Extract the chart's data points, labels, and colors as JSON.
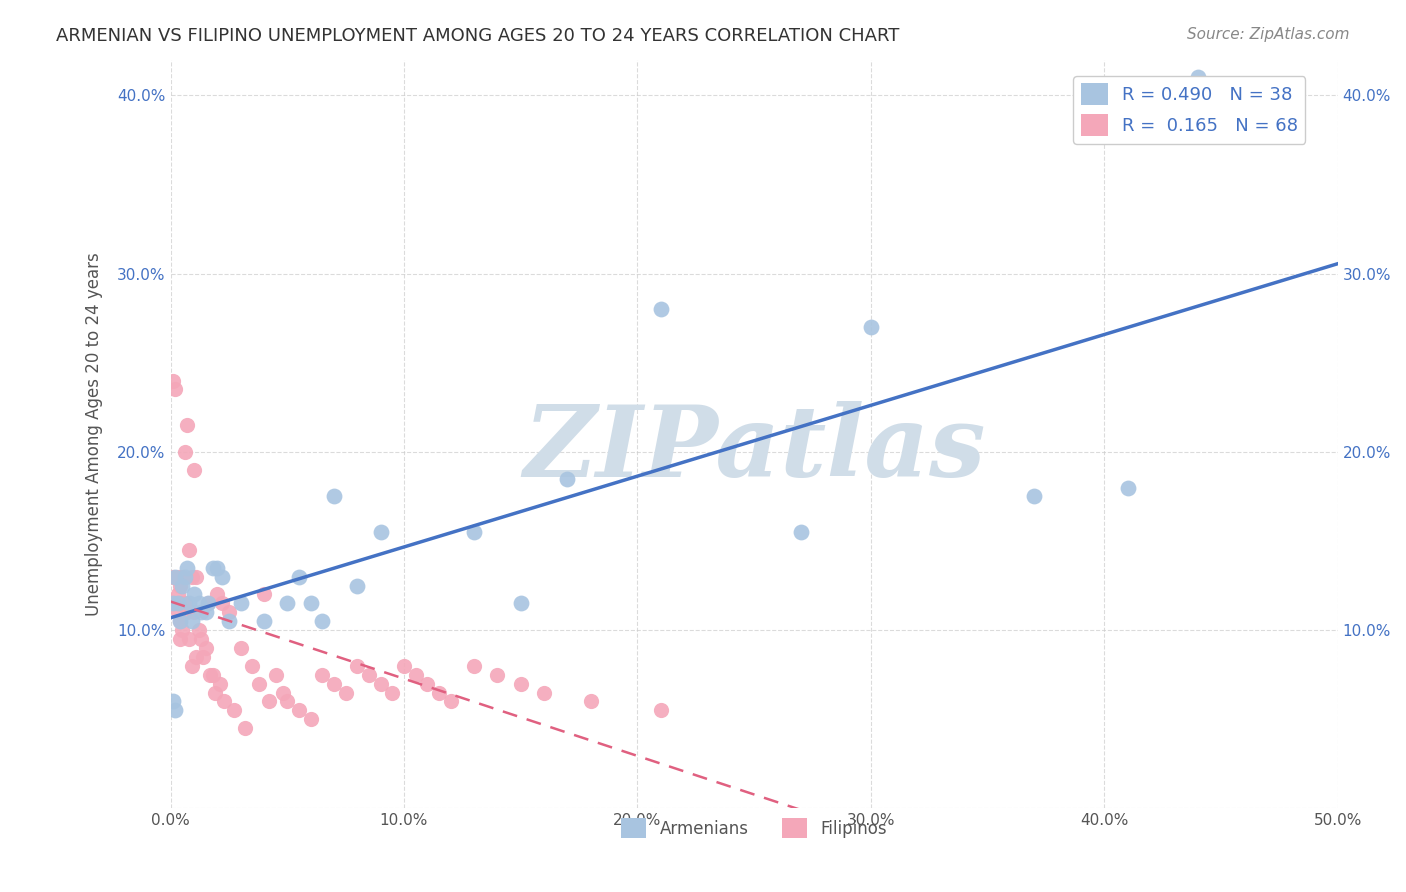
{
  "title": "ARMENIAN VS FILIPINO UNEMPLOYMENT AMONG AGES 20 TO 24 YEARS CORRELATION CHART",
  "source": "Source: ZipAtlas.com",
  "ylabel": "Unemployment Among Ages 20 to 24 years",
  "xlim": [
    0.0,
    0.5
  ],
  "ylim": [
    0.0,
    0.42
  ],
  "xticks": [
    0.0,
    0.1,
    0.2,
    0.3,
    0.4,
    0.5
  ],
  "yticks": [
    0.0,
    0.1,
    0.2,
    0.3,
    0.4
  ],
  "xtick_labels": [
    "0.0%",
    "10.0%",
    "20.0%",
    "30.0%",
    "40.0%",
    "50.0%"
  ],
  "ytick_labels": [
    "",
    "10.0%",
    "20.0%",
    "30.0%",
    "40.0%"
  ],
  "armenian_R": 0.49,
  "armenian_N": 38,
  "filipino_R": 0.165,
  "filipino_N": 68,
  "armenian_color": "#a8c4e0",
  "filipino_color": "#f4a7b9",
  "armenian_line_color": "#4472c4",
  "filipino_line_color": "#e06080",
  "background_color": "#ffffff",
  "grid_color": "#cccccc",
  "watermark_text": "ZIPatlas",
  "watermark_color": "#d0dde8",
  "legend_text_color": "#4472c4",
  "tick_label_color": "#4472c4",
  "title_color": "#333333",
  "source_color": "#888888",
  "ylabel_color": "#555555",
  "arm_x": [
    0.44,
    0.21,
    0.3,
    0.17,
    0.41,
    0.37,
    0.27,
    0.13,
    0.15,
    0.09,
    0.08,
    0.07,
    0.065,
    0.06,
    0.055,
    0.05,
    0.04,
    0.03,
    0.025,
    0.022,
    0.02,
    0.018,
    0.016,
    0.015,
    0.013,
    0.012,
    0.01,
    0.009,
    0.008,
    0.007,
    0.006,
    0.005,
    0.004,
    0.003,
    0.002,
    0.002,
    0.001,
    0.001
  ],
  "arm_y": [
    0.41,
    0.28,
    0.27,
    0.185,
    0.18,
    0.175,
    0.155,
    0.155,
    0.115,
    0.155,
    0.125,
    0.175,
    0.105,
    0.115,
    0.13,
    0.115,
    0.105,
    0.115,
    0.105,
    0.13,
    0.135,
    0.135,
    0.115,
    0.11,
    0.11,
    0.115,
    0.12,
    0.105,
    0.115,
    0.135,
    0.13,
    0.125,
    0.105,
    0.115,
    0.13,
    0.055,
    0.115,
    0.06
  ],
  "fil_x": [
    0.001,
    0.001,
    0.002,
    0.002,
    0.003,
    0.003,
    0.003,
    0.004,
    0.004,
    0.004,
    0.005,
    0.005,
    0.005,
    0.006,
    0.006,
    0.007,
    0.007,
    0.008,
    0.008,
    0.009,
    0.009,
    0.01,
    0.01,
    0.011,
    0.011,
    0.012,
    0.013,
    0.014,
    0.015,
    0.016,
    0.017,
    0.018,
    0.019,
    0.02,
    0.021,
    0.022,
    0.023,
    0.025,
    0.027,
    0.03,
    0.032,
    0.035,
    0.038,
    0.04,
    0.042,
    0.045,
    0.048,
    0.05,
    0.055,
    0.06,
    0.065,
    0.07,
    0.075,
    0.08,
    0.085,
    0.09,
    0.095,
    0.1,
    0.105,
    0.11,
    0.115,
    0.12,
    0.13,
    0.14,
    0.15,
    0.16,
    0.18,
    0.21
  ],
  "fil_y": [
    0.13,
    0.24,
    0.235,
    0.115,
    0.13,
    0.12,
    0.11,
    0.125,
    0.105,
    0.095,
    0.13,
    0.115,
    0.1,
    0.2,
    0.115,
    0.215,
    0.11,
    0.145,
    0.095,
    0.13,
    0.08,
    0.19,
    0.11,
    0.13,
    0.085,
    0.1,
    0.095,
    0.085,
    0.09,
    0.115,
    0.075,
    0.075,
    0.065,
    0.12,
    0.07,
    0.115,
    0.06,
    0.11,
    0.055,
    0.09,
    0.045,
    0.08,
    0.07,
    0.12,
    0.06,
    0.075,
    0.065,
    0.06,
    0.055,
    0.05,
    0.075,
    0.07,
    0.065,
    0.08,
    0.075,
    0.07,
    0.065,
    0.08,
    0.075,
    0.07,
    0.065,
    0.06,
    0.08,
    0.075,
    0.07,
    0.065,
    0.06,
    0.055
  ]
}
